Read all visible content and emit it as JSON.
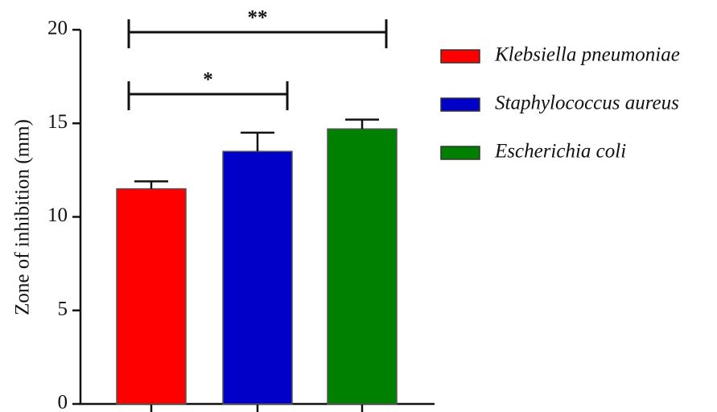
{
  "chart_data": {
    "type": "bar",
    "y_label": "Zone of inhibition (mm)",
    "ylim": [
      0,
      20
    ],
    "yticks": [
      0,
      5,
      10,
      15,
      20
    ],
    "series": [
      {
        "name": "Klebsiella pneumoniae",
        "color": "#ff0000",
        "values": [
          11.5
        ],
        "errors": [
          0.4
        ]
      },
      {
        "name": "Staphylococcus aureus",
        "color": "#0000c8",
        "values": [
          13.5
        ],
        "errors": [
          1.0
        ]
      },
      {
        "name": "Escherichia coli",
        "color": "#008000",
        "values": [
          14.7
        ],
        "errors": [
          0.5
        ]
      }
    ],
    "annotations": [
      "*",
      "**"
    ]
  }
}
